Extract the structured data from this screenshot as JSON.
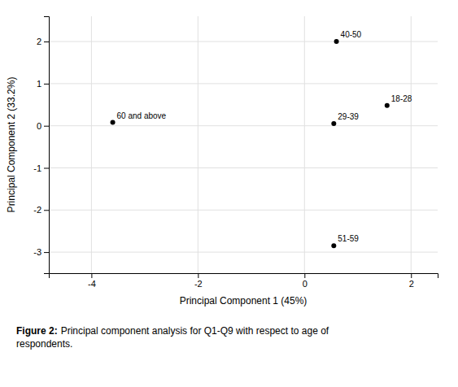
{
  "chart_data": {
    "type": "scatter",
    "x_label": "Principal Component 1 (45%)",
    "y_label": "Principal Component 2 (33.2%)",
    "labels": [
      "40-50",
      "18-28",
      "29-39",
      "60 and above",
      "51-59"
    ],
    "x": [
      0.6,
      1.55,
      0.55,
      -3.6,
      0.55
    ],
    "values": [
      2.0,
      0.48,
      0.05,
      0.08,
      -2.85
    ],
    "color": "#000000",
    "xlim": [
      -4.8,
      2.5
    ],
    "ylim": [
      -3.5,
      2.6
    ],
    "xticks": [
      -4,
      -2,
      0,
      2
    ],
    "yticks": [
      -3,
      -2,
      -1,
      0,
      1,
      2
    ],
    "grid": true,
    "caption": [
      "Figure 2:",
      "Principal component analysis for Q1-Q9 with respect to age of",
      "respondents."
    ]
  }
}
